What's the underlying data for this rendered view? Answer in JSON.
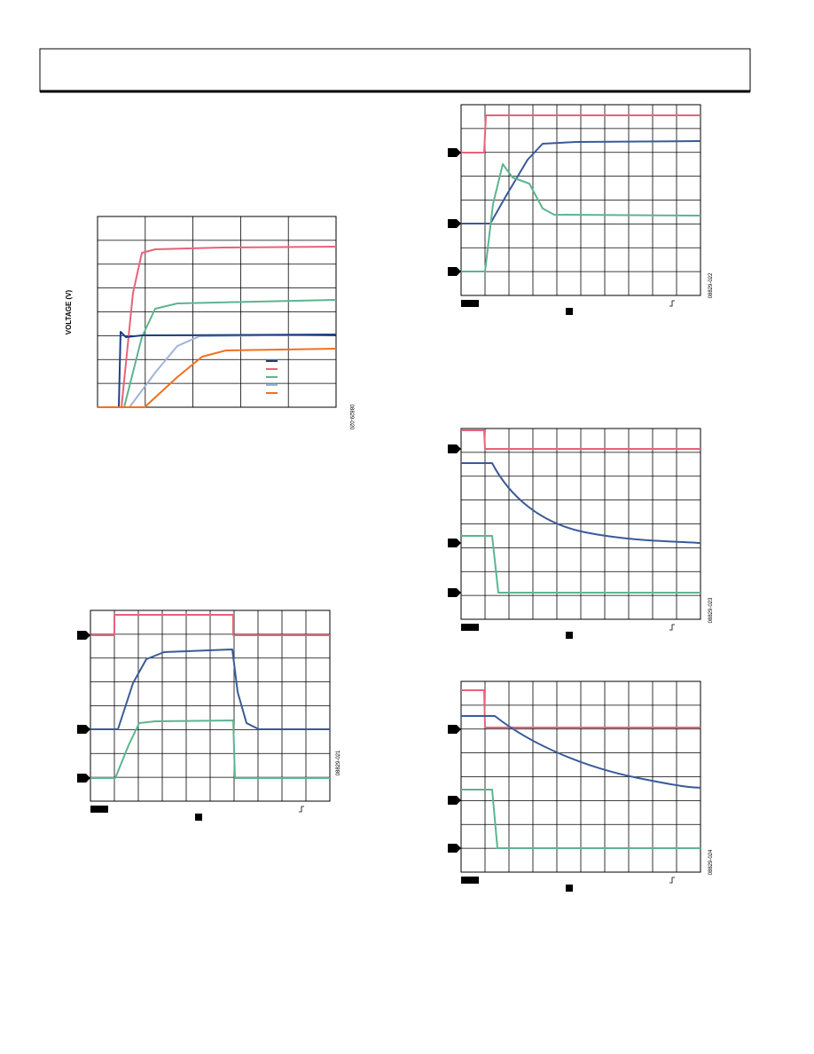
{
  "figures": [
    {
      "ylabel": "VOLTAGE (V)",
      "id": "08829-020"
    },
    {
      "id": "08829-021"
    },
    {
      "id": "08829-022"
    },
    {
      "id": "08829-023"
    },
    {
      "id": "08829-024"
    }
  ]
}
